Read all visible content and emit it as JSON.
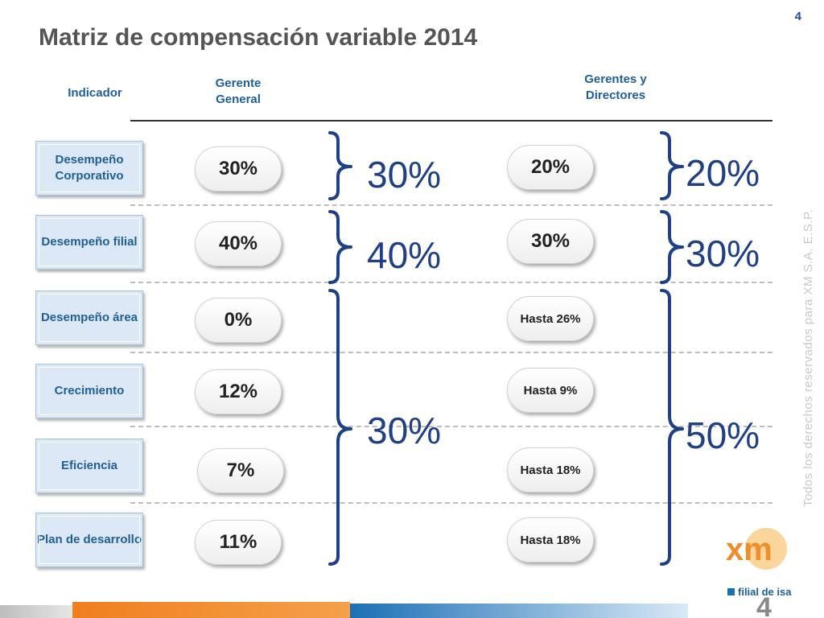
{
  "slide": {
    "page_number": "4",
    "title": "Matriz de compensación variable 2014",
    "watermark": "Todos los derechos reservados para XM S.A. E.S.P.",
    "footer_page_number": "4"
  },
  "headers": {
    "indicador": "Indicador",
    "gerente_general": "Gerente General",
    "gerentes_directores": "Gerentes y Directores"
  },
  "rows": [
    {
      "indicador": "Desempeño Corporativo",
      "gerente_general": "30%",
      "gerentes_directores": "20%"
    },
    {
      "indicador": "Desempeño filial",
      "gerente_general": "40%",
      "gerentes_directores": "30%"
    },
    {
      "indicador": "Desempeño área",
      "gerente_general": "0%",
      "gerentes_directores": "Hasta 26%"
    },
    {
      "indicador": "Crecimiento",
      "gerente_general": "12%",
      "gerentes_directores": "Hasta 9%"
    },
    {
      "indicador": "Eficiencia",
      "gerente_general": "7%",
      "gerentes_directores": "Hasta 18%"
    },
    {
      "indicador": "Plan de desarrollo",
      "gerente_general": "11%",
      "gerentes_directores": "Hasta 18%"
    }
  ],
  "group_totals": {
    "gerente_general": [
      "30%",
      "40%",
      "30%"
    ],
    "gerentes_directores": [
      "20%",
      "30%",
      "50%"
    ]
  },
  "logo": {
    "brand": "xm",
    "tagline": "filial de isa"
  },
  "colors": {
    "title": "#555555",
    "header_text": "#1f5f99",
    "bracket": "#1f3f87",
    "logo_orange": "#f28c28",
    "bar_orange": "#f07f1e",
    "bar_blue": "#1c6fb5"
  }
}
